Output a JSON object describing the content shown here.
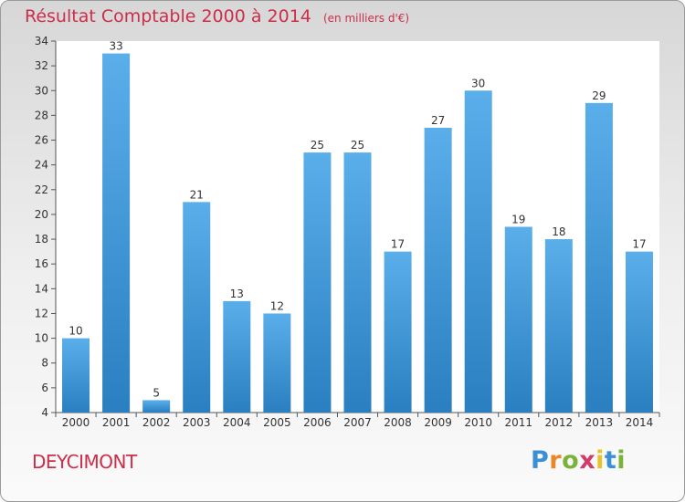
{
  "title": "Résultat Comptable 2000 à 2014",
  "unit": "(en milliers d'€)",
  "place": "DEYCIMONT",
  "logo": {
    "text": "Proxiti",
    "letters": [
      {
        "char": "P",
        "color": "#3a8fd6"
      },
      {
        "char": "r",
        "color": "#e8862a"
      },
      {
        "char": "o",
        "color": "#7bb33a"
      },
      {
        "char": "x",
        "color": "#d23a6a"
      },
      {
        "char": "i",
        "color": "#e8c22a"
      },
      {
        "char": "t",
        "color": "#3a8fd6"
      },
      {
        "char": "i",
        "color": "#7bb33a"
      }
    ]
  },
  "colors": {
    "bar_top": "#5aaeea",
    "bar_bottom": "#2a7fc0",
    "title": "#cc2e4a"
  },
  "chart_data": {
    "type": "bar",
    "categories": [
      "2000",
      "2001",
      "2002",
      "2003",
      "2004",
      "2005",
      "2006",
      "2007",
      "2008",
      "2009",
      "2010",
      "2011",
      "2012",
      "2013",
      "2014"
    ],
    "values": [
      10,
      33,
      5,
      21,
      13,
      12,
      25,
      25,
      17,
      27,
      30,
      19,
      18,
      29,
      17
    ],
    "ylim": [
      4,
      34
    ],
    "yticks": [
      4,
      6,
      8,
      10,
      12,
      14,
      16,
      18,
      20,
      22,
      24,
      26,
      28,
      30,
      32,
      34
    ],
    "grid": false,
    "legend": "none"
  }
}
